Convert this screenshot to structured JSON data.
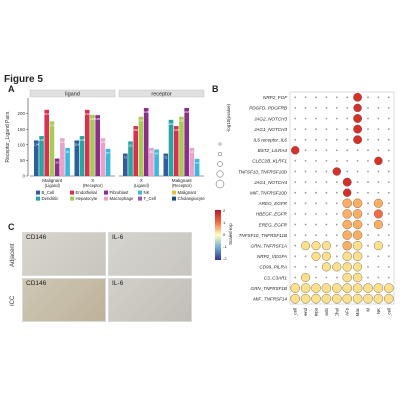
{
  "figure": {
    "title": "Figure 5"
  },
  "panels": {
    "a": "A",
    "b": "B",
    "c": "C"
  },
  "chart_data": [
    {
      "type": "bar",
      "facets": [
        {
          "title": "ligand",
          "groups": [
            {
              "label": "Malignant",
              "sublabel": "(Ligand)",
              "values": [
                114,
                128,
                212,
                175,
                56,
                121,
                90
              ]
            },
            {
              "label": "X",
              "sublabel": "(Receptor)",
              "values": [
                114,
                128,
                212,
                196,
                195,
                121,
                87
              ]
            }
          ]
        },
        {
          "title": "receptor",
          "groups": [
            {
              "label": "X",
              "sublabel": "(Ligand)",
              "values": [
                72,
                111,
                160,
                190,
                218,
                90,
                85
              ]
            },
            {
              "label": "Malignant",
              "sublabel": "(Receptor)",
              "values": [
                72,
                180,
                160,
                190,
                218,
                90,
                55
              ]
            }
          ]
        }
      ],
      "ylabel": "Receptor_Ligand Pairs",
      "ylim": [
        0,
        250
      ],
      "yticks": [
        0,
        50,
        100,
        150,
        200
      ],
      "legend": [
        {
          "name": "B_Cell",
          "color": "#2f5d9e"
        },
        {
          "name": "Dendritic",
          "color": "#2aa4a0"
        },
        {
          "name": "Endothelial",
          "color": "#d6324f"
        },
        {
          "name": "Hepatocyte",
          "color": "#a7c957"
        },
        {
          "name": "Fibroblast",
          "color": "#8b2d8b"
        },
        {
          "name": "Macrophage",
          "color": "#e7a4c8"
        },
        {
          "name": "NK",
          "color": "#3cb7e0"
        },
        {
          "name": "T_Cell",
          "color": "#9b59b6"
        },
        {
          "name": "Malignant",
          "color": "#e0c248"
        },
        {
          "name": "Cholangiocyte",
          "color": "#1f4e79"
        }
      ]
    },
    {
      "type": "dotplot",
      "rows": [
        "NRP2_FGF",
        "PDGFD_PDGFRB",
        "JAG2_NOTCH3",
        "JAG1_NOTCH3",
        "IL6 receptor_IL6",
        "BST2_LILRA4",
        "CLEC2B_KLRF1",
        "TNFSF10_TNFRSF10D",
        "JAG1_NOTCH4",
        "MIF_TNFRSF10D",
        "AREG_EGFR",
        "HBEGF_EGFR",
        "EREG_EGFR",
        "TNFSF10_TNFRSF11B",
        "GRN_TNFRSF1A",
        "NRP2_VEGFA",
        "CD99_PILRA",
        "C3_C3AR1",
        "GRN_TNFRSF1B",
        "MIF_TNFRSF14"
      ],
      "columns": [
        "B_cell",
        "Dend",
        "Hepa",
        "Endo",
        "Chol",
        "CAFs",
        "Mac",
        "M",
        "NK",
        "T_cell"
      ],
      "size_legend_title": "-log10(pvalue)",
      "color_legend_title": "Scaled exp",
      "color_legend_ticks": [
        "2",
        "1",
        "0",
        "-1",
        "-2"
      ]
    }
  ],
  "ihc": {
    "markers": [
      "CD146",
      "IL-6"
    ],
    "rows": [
      "Adjacent",
      "ICC"
    ]
  }
}
